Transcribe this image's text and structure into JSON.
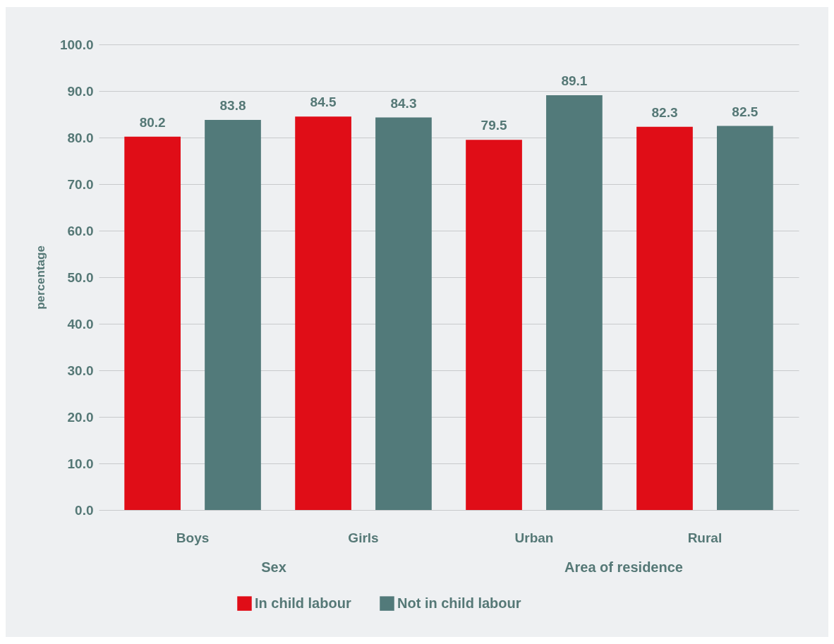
{
  "chart_data": {
    "type": "bar",
    "ylabel": "percentage",
    "categories": [
      "Boys",
      "Girls",
      "Urban",
      "Rural"
    ],
    "series": [
      {
        "name": "In child labour",
        "color": "#e00d17",
        "values": [
          80.2,
          84.5,
          79.5,
          82.3
        ]
      },
      {
        "name": "Not in child labour",
        "color": "#527a7a",
        "values": [
          83.8,
          84.3,
          89.1,
          82.5
        ]
      }
    ],
    "ylim": [
      0,
      100
    ],
    "yticks": [
      {
        "value": 0,
        "label": "0.0"
      },
      {
        "value": 10,
        "label": "10.0"
      },
      {
        "value": 20,
        "label": "20.0"
      },
      {
        "value": 30,
        "label": "30.0"
      },
      {
        "value": 40,
        "label": "40.0"
      },
      {
        "value": 50,
        "label": "50.0"
      },
      {
        "value": 60,
        "label": "60.0"
      },
      {
        "value": 70,
        "label": "70.0"
      },
      {
        "value": 80,
        "label": "80.0"
      },
      {
        "value": 90,
        "label": "90.0"
      },
      {
        "value": 100,
        "label": "100.0"
      }
    ],
    "annotations": [
      "Sex",
      "Area of residence"
    ],
    "grid": "y",
    "legend": "bottom",
    "data_labels": true
  }
}
